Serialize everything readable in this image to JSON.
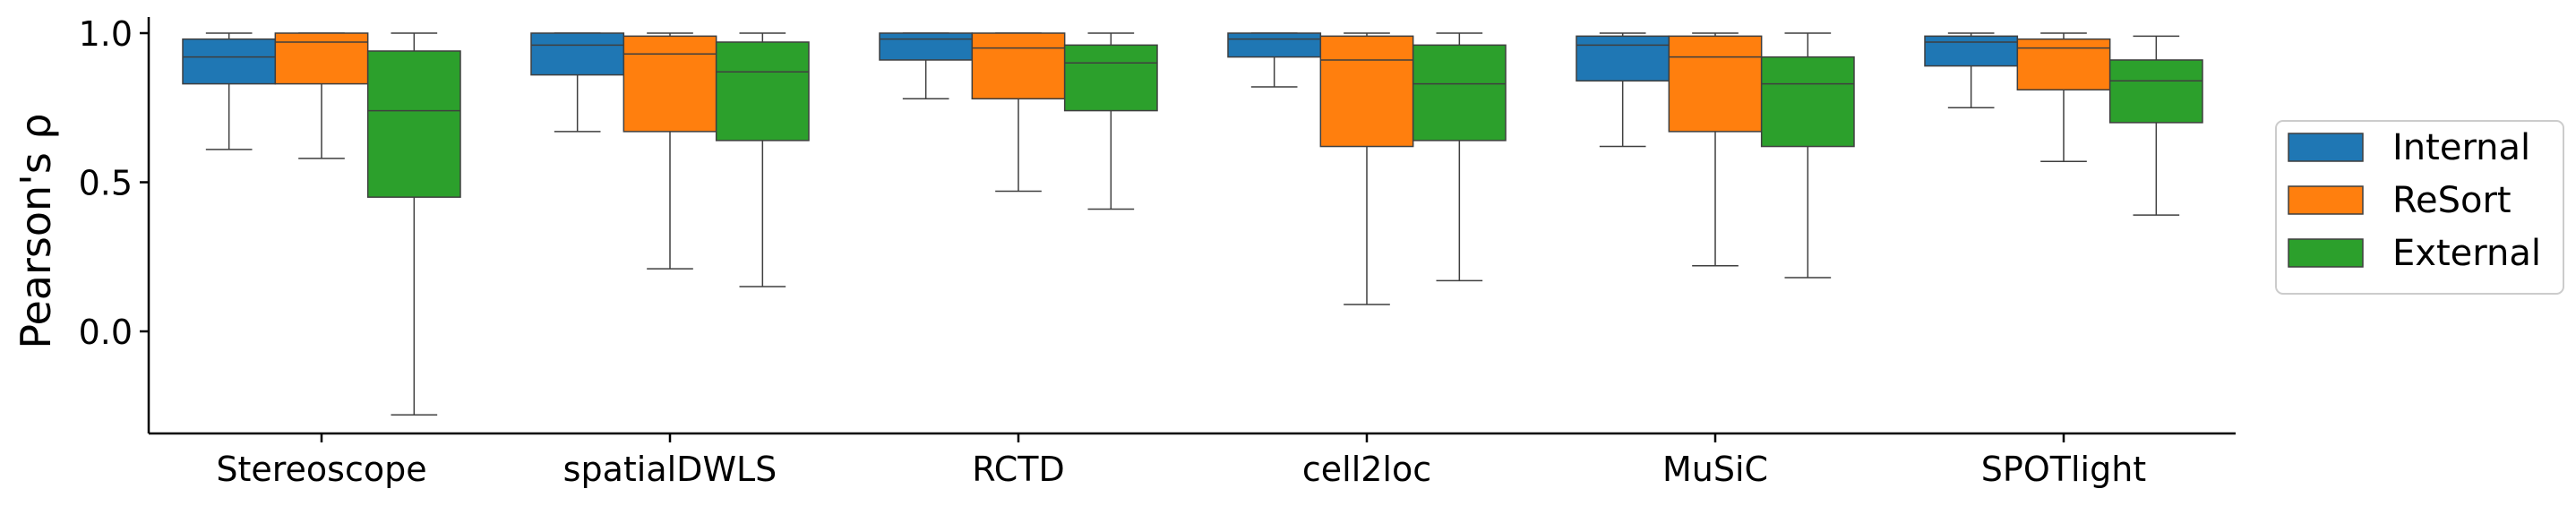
{
  "chart_data": {
    "type": "boxplot",
    "title": "",
    "xlabel": "",
    "ylabel": "Pearson's ρ",
    "ylim": [
      -0.33,
      1.05
    ],
    "yticks": [
      0.0,
      0.5,
      1.0
    ],
    "ytick_labels": [
      "0.0",
      "0.5",
      "1.0"
    ],
    "categories": [
      "Stereoscope",
      "spatialDWLS",
      "RCTD",
      "cell2loc",
      "MuSiC",
      "SPOTlight"
    ],
    "legend": {
      "position": "right",
      "entries": [
        "Internal",
        "ReSort",
        "External"
      ]
    },
    "series": [
      {
        "name": "Internal",
        "color": "#1f77b4",
        "boxes": [
          {
            "whislo": 0.61,
            "q1": 0.83,
            "med": 0.92,
            "q3": 0.98,
            "whishi": 1.0
          },
          {
            "whislo": 0.67,
            "q1": 0.86,
            "med": 0.96,
            "q3": 1.0,
            "whishi": 1.0
          },
          {
            "whislo": 0.78,
            "q1": 0.91,
            "med": 0.98,
            "q3": 1.0,
            "whishi": 1.0
          },
          {
            "whislo": 0.82,
            "q1": 0.92,
            "med": 0.98,
            "q3": 1.0,
            "whishi": 1.0
          },
          {
            "whislo": 0.62,
            "q1": 0.84,
            "med": 0.96,
            "q3": 0.99,
            "whishi": 1.0
          },
          {
            "whislo": 0.75,
            "q1": 0.89,
            "med": 0.97,
            "q3": 0.99,
            "whishi": 1.0
          }
        ]
      },
      {
        "name": "ReSort",
        "color": "#ff7f0e",
        "boxes": [
          {
            "whislo": 0.58,
            "q1": 0.83,
            "med": 0.97,
            "q3": 1.0,
            "whishi": 1.0
          },
          {
            "whislo": 0.21,
            "q1": 0.67,
            "med": 0.93,
            "q3": 0.99,
            "whishi": 1.0
          },
          {
            "whislo": 0.47,
            "q1": 0.78,
            "med": 0.95,
            "q3": 1.0,
            "whishi": 1.0
          },
          {
            "whislo": 0.09,
            "q1": 0.62,
            "med": 0.91,
            "q3": 0.99,
            "whishi": 1.0
          },
          {
            "whislo": 0.22,
            "q1": 0.67,
            "med": 0.92,
            "q3": 0.99,
            "whishi": 1.0
          },
          {
            "whislo": 0.57,
            "q1": 0.81,
            "med": 0.95,
            "q3": 0.98,
            "whishi": 1.0
          }
        ]
      },
      {
        "name": "External",
        "color": "#2ca02c",
        "boxes": [
          {
            "whislo": -0.28,
            "q1": 0.45,
            "med": 0.74,
            "q3": 0.94,
            "whishi": 1.0
          },
          {
            "whislo": 0.15,
            "q1": 0.64,
            "med": 0.87,
            "q3": 0.97,
            "whishi": 1.0
          },
          {
            "whislo": 0.41,
            "q1": 0.74,
            "med": 0.9,
            "q3": 0.96,
            "whishi": 1.0
          },
          {
            "whislo": 0.17,
            "q1": 0.64,
            "med": 0.83,
            "q3": 0.96,
            "whishi": 1.0
          },
          {
            "whislo": 0.18,
            "q1": 0.62,
            "med": 0.83,
            "q3": 0.92,
            "whishi": 1.0
          },
          {
            "whislo": 0.39,
            "q1": 0.7,
            "med": 0.84,
            "q3": 0.91,
            "whishi": 0.99
          }
        ]
      }
    ]
  }
}
